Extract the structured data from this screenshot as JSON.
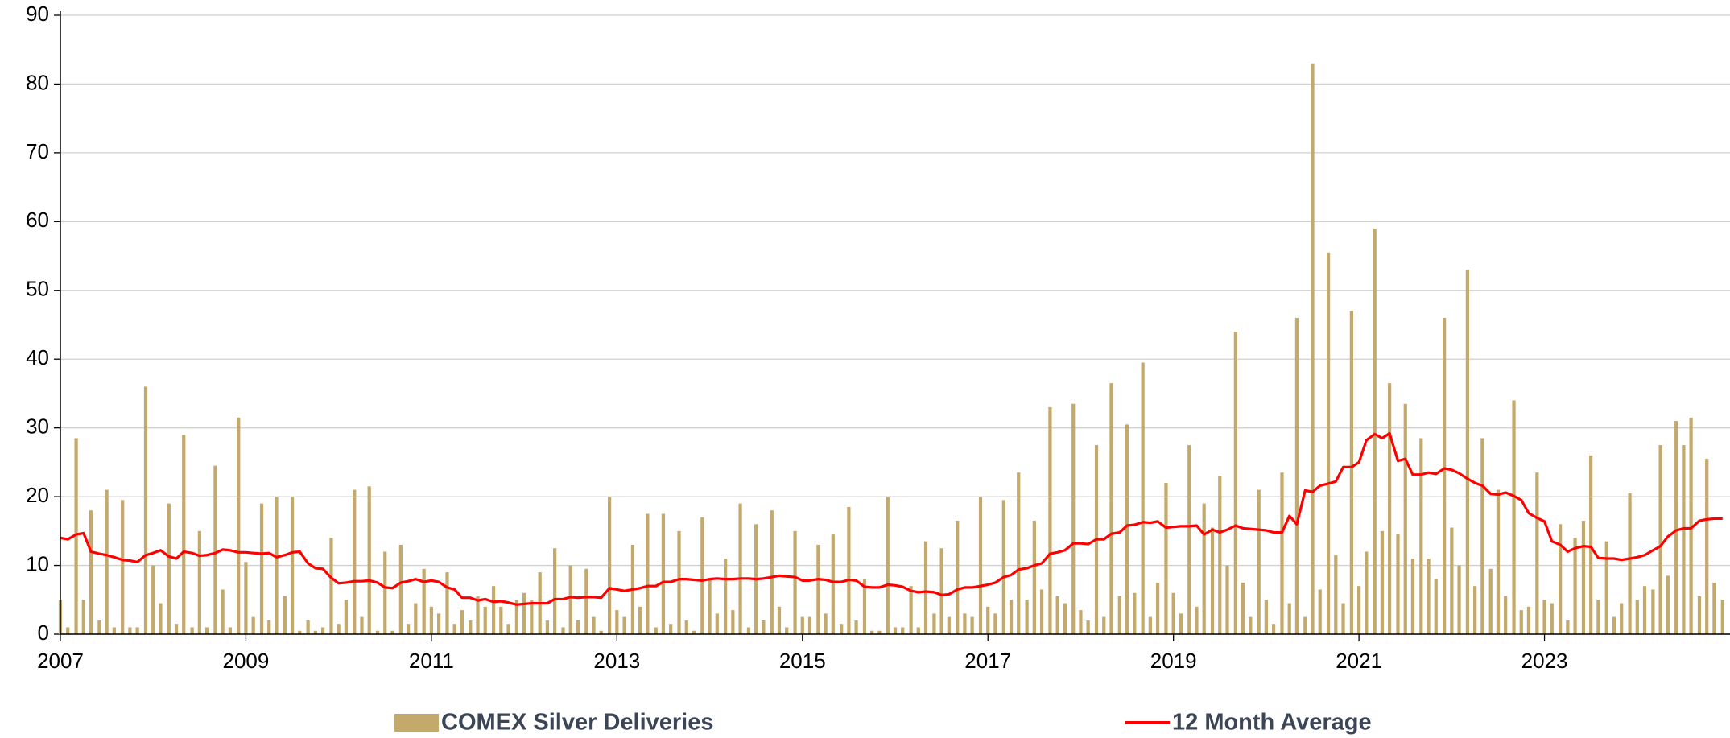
{
  "chart_data": {
    "type": "combo",
    "x": [
      2007,
      2007.08,
      2007.17,
      2007.25,
      2007.33,
      2007.42,
      2007.5,
      2007.58,
      2007.67,
      2007.75,
      2007.83,
      2007.92,
      2008,
      2008.08,
      2008.17,
      2008.25,
      2008.33,
      2008.42,
      2008.5,
      2008.58,
      2008.67,
      2008.75,
      2008.83,
      2008.92,
      2009,
      2009.08,
      2009.17,
      2009.25,
      2009.33,
      2009.42,
      2009.5,
      2009.58,
      2009.67,
      2009.75,
      2009.83,
      2009.92,
      2010,
      2010.08,
      2010.17,
      2010.25,
      2010.33,
      2010.42,
      2010.5,
      2010.58,
      2010.67,
      2010.75,
      2010.83,
      2010.92,
      2011,
      2011.08,
      2011.17,
      2011.25,
      2011.33,
      2011.42,
      2011.5,
      2011.58,
      2011.67,
      2011.75,
      2011.83,
      2011.92,
      2012,
      2012.08,
      2012.17,
      2012.25,
      2012.33,
      2012.42,
      2012.5,
      2012.58,
      2012.67,
      2012.75,
      2012.83,
      2012.92,
      2013,
      2013.08,
      2013.17,
      2013.25,
      2013.33,
      2013.42,
      2013.5,
      2013.58,
      2013.67,
      2013.75,
      2013.83,
      2013.92,
      2014,
      2014.08,
      2014.17,
      2014.25,
      2014.33,
      2014.42,
      2014.5,
      2014.58,
      2014.67,
      2014.75,
      2014.83,
      2014.92,
      2015,
      2015.08,
      2015.17,
      2015.25,
      2015.33,
      2015.42,
      2015.5,
      2015.58,
      2015.67,
      2015.75,
      2015.83,
      2015.92,
      2016,
      2016.08,
      2016.17,
      2016.25,
      2016.33,
      2016.42,
      2016.5,
      2016.58,
      2016.67,
      2016.75,
      2016.83,
      2016.92,
      2017,
      2017.08,
      2017.17,
      2017.25,
      2017.33,
      2017.42,
      2017.5,
      2017.58,
      2017.67,
      2017.75,
      2017.83,
      2017.92,
      2018,
      2018.08,
      2018.17,
      2018.25,
      2018.33,
      2018.42,
      2018.5,
      2018.58,
      2018.67,
      2018.75,
      2018.83,
      2018.92,
      2019,
      2019.08,
      2019.17,
      2019.25,
      2019.33,
      2019.42,
      2019.5,
      2019.58,
      2019.67,
      2019.75,
      2019.83,
      2019.92,
      2020,
      2020.08,
      2020.17,
      2020.25,
      2020.33,
      2020.42,
      2020.5,
      2020.58,
      2020.67,
      2020.75,
      2020.83,
      2020.92,
      2021,
      2021.08,
      2021.17,
      2021.25,
      2021.33,
      2021.42,
      2021.5,
      2021.58,
      2021.67,
      2021.75,
      2021.83,
      2021.92,
      2022,
      2022.08,
      2022.17,
      2022.25,
      2022.33,
      2022.42,
      2022.5,
      2022.58,
      2022.67,
      2022.75,
      2022.83,
      2022.92,
      2023,
      2023.08,
      2023.17,
      2023.25,
      2023.33,
      2023.42,
      2023.5,
      2023.58,
      2023.67,
      2023.75,
      2023.83,
      2023.92,
      2024,
      2024.08,
      2024.17,
      2024.25,
      2024.33,
      2024.42,
      2024.5,
      2024.58,
      2024.67,
      2024.75,
      2024.83,
      2024.92
    ],
    "series": [
      {
        "name": "COMEX Silver Deliveries",
        "type": "bar",
        "color": "#c3a96b",
        "values": [
          5,
          1,
          28.5,
          5,
          18,
          2,
          21,
          1,
          19.5,
          1,
          1,
          36,
          10,
          4.5,
          19,
          1.5,
          29,
          1,
          15,
          1,
          24.5,
          6.5,
          1,
          31.5,
          10.5,
          2.5,
          19,
          2,
          20,
          5.5,
          20,
          0.5,
          2,
          0.5,
          1,
          14,
          1.5,
          5,
          21,
          2.5,
          21.5,
          0.5,
          12,
          0.5,
          13,
          1.5,
          4.5,
          9.5,
          4,
          3,
          9,
          1.5,
          3.5,
          2,
          5.5,
          4,
          7,
          4,
          1.5,
          5,
          6,
          5,
          9,
          2,
          12.5,
          1,
          10,
          2,
          9.5,
          2.5,
          0.5,
          20,
          3.5,
          2.5,
          13,
          4,
          17.5,
          1,
          17.5,
          1.5,
          15,
          2,
          0.5,
          17,
          8,
          3,
          11,
          3.5,
          19,
          1,
          16,
          2,
          18,
          4,
          1,
          15,
          2.5,
          2.5,
          13,
          3,
          14.5,
          1.5,
          18.5,
          2,
          8,
          0.5,
          0.5,
          20,
          1,
          1,
          7,
          1,
          13.5,
          3,
          12.5,
          2.5,
          16.5,
          3,
          2.5,
          20,
          4,
          3,
          19.5,
          5,
          23.5,
          5,
          16.5,
          6.5,
          33,
          5.5,
          4.5,
          33.5,
          3.5,
          2,
          27.5,
          2.5,
          36.5,
          5.5,
          30.5,
          6,
          39.5,
          2.5,
          7.5,
          22,
          6,
          3,
          27.5,
          4,
          19,
          15.5,
          23,
          10,
          44,
          7.5,
          2.5,
          21,
          5,
          1.5,
          23.5,
          4.5,
          46,
          2.5,
          83,
          6.5,
          55.5,
          11.5,
          4.5,
          47,
          7,
          12,
          59,
          15,
          36.5,
          14.5,
          33.5,
          11,
          28.5,
          11,
          8,
          46,
          15.5,
          10,
          53,
          7,
          28.5,
          9.5,
          21,
          5.5,
          34,
          3.5,
          4,
          23.5,
          5,
          4.5,
          16,
          2,
          14,
          16.5,
          26,
          5,
          13.5,
          2.5,
          4.5,
          20.5,
          5,
          7,
          6.5,
          27.5,
          8.5,
          31,
          27.5,
          31.5,
          5.5,
          25.5,
          7.5,
          5
        ]
      },
      {
        "name": "12 Month Average",
        "type": "line",
        "color": "#ff0000",
        "values": [
          14,
          13.8,
          14.5,
          14.7,
          12,
          11.7,
          11.5,
          11.2,
          10.8,
          10.7,
          10.5,
          11.5,
          11.8,
          12.2,
          11.3,
          11,
          12,
          11.8,
          11.4,
          11.5,
          11.8,
          12.3,
          12.2,
          11.9,
          11.9,
          11.8,
          11.7,
          11.8,
          11.2,
          11.5,
          11.9,
          12,
          10.3,
          9.6,
          9.5,
          8.2,
          7.4,
          7.5,
          7.7,
          7.7,
          7.8,
          7.5,
          6.8,
          6.7,
          7.5,
          7.7,
          8,
          7.6,
          7.8,
          7.6,
          6.8,
          6.5,
          5.3,
          5.3,
          4.9,
          5.1,
          4.7,
          4.8,
          4.6,
          4.3,
          4.4,
          4.5,
          4.5,
          4.5,
          5.1,
          5.1,
          5.4,
          5.3,
          5.4,
          5.4,
          5.3,
          6.7,
          6.5,
          6.3,
          6.5,
          6.7,
          7,
          7,
          7.6,
          7.6,
          8,
          8,
          7.9,
          7.8,
          8,
          8.1,
          8,
          8,
          8.1,
          8.1,
          8,
          8.1,
          8.3,
          8.5,
          8.4,
          8.3,
          7.8,
          7.8,
          8,
          7.9,
          7.6,
          7.6,
          7.9,
          7.8,
          6.9,
          6.8,
          6.8,
          7.2,
          7.1,
          6.9,
          6.3,
          6.1,
          6.2,
          6.1,
          5.7,
          5.8,
          6.5,
          6.8,
          6.8,
          7,
          7.2,
          7.5,
          8.3,
          8.6,
          9.4,
          9.6,
          10,
          10.3,
          11.7,
          11.9,
          12.2,
          13.2,
          13.2,
          13.1,
          13.8,
          13.8,
          14.6,
          14.8,
          15.8,
          15.9,
          16.3,
          16.2,
          16.4,
          15.5,
          15.6,
          15.7,
          15.7,
          15.8,
          14.5,
          15.2,
          14.8,
          15.2,
          15.8,
          15.4,
          15.3,
          15.2,
          15.1,
          14.8,
          14.8,
          17.2,
          16,
          20.9,
          20.7,
          21.6,
          21.9,
          22.2,
          24.3,
          24.3,
          25,
          28.2,
          29.1,
          28.5,
          29.2,
          25.2,
          25.5,
          23.2,
          23.2,
          23.5,
          23.3,
          24.1,
          23.9,
          23.4,
          22.6,
          22,
          21.6,
          20.4,
          20.3,
          20.6,
          20.1,
          19.5,
          17.6,
          16.9,
          16.4,
          13.5,
          13,
          12,
          12.5,
          12.8,
          12.7,
          11.1,
          11,
          11,
          10.8,
          11,
          11.2,
          11.5,
          12.2,
          12.8,
          14.2,
          15.1,
          15.4,
          15.4,
          16.5,
          16.7,
          16.8,
          16.8
        ]
      }
    ],
    "xlim": [
      2007,
      2025
    ],
    "xticks": [
      2007,
      2009,
      2011,
      2013,
      2015,
      2017,
      2019,
      2021,
      2023
    ],
    "ylim": [
      0,
      90
    ],
    "yticks": [
      0,
      10,
      20,
      30,
      40,
      50,
      60,
      70,
      80,
      90
    ],
    "grid": true,
    "legend": "bottom"
  }
}
